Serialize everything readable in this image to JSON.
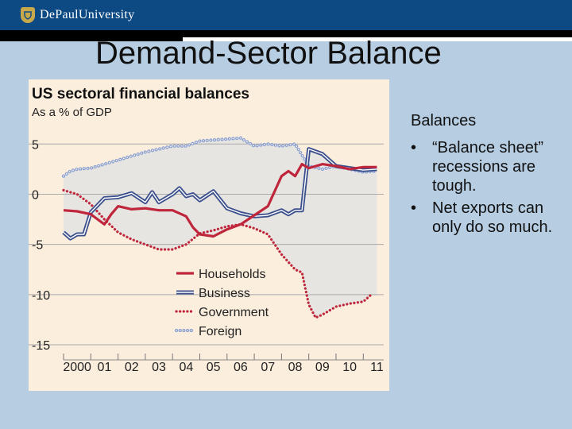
{
  "header": {
    "logo_text": "DePaulUniversity",
    "logo_icon": "university-crest-icon"
  },
  "slide": {
    "title": "Demand-Sector Balance",
    "side_heading": "Balances",
    "bullets": [
      "“Balance sheet” recessions are tough.",
      "Net exports can only do so much."
    ]
  },
  "chart_data": {
    "type": "line",
    "title": "US sectoral financial balances",
    "subtitle": "As a % of GDP",
    "xlabel": "",
    "ylabel": "",
    "x_tick_labels": [
      "2000",
      "01",
      "02",
      "03",
      "04",
      "05",
      "06",
      "07",
      "08",
      "09",
      "10",
      "11"
    ],
    "y_tick_labels": [
      "5",
      "0",
      "-5",
      "-10",
      "-15"
    ],
    "yticks": [
      5,
      0,
      -5,
      -10,
      -15
    ],
    "xlim": [
      2000,
      2011.75
    ],
    "ylim": [
      -16.5,
      7
    ],
    "grid": true,
    "legend_position": "bottom-center",
    "shaded_area": "between highest and lowest series",
    "series": [
      {
        "name": "Households",
        "color": "#c0263b",
        "style": "solid",
        "x": [
          2000,
          2000.5,
          2001,
          2001.25,
          2001.5,
          2001.75,
          2002,
          2002.5,
          2003,
          2003.5,
          2004,
          2004.5,
          2004.75,
          2005,
          2005.5,
          2006,
          2006.5,
          2007,
          2007.5,
          2008,
          2008.25,
          2008.5,
          2008.75,
          2009,
          2009.25,
          2009.5,
          2010,
          2010.5,
          2011,
          2011.5
        ],
        "y": [
          -1.6,
          -1.7,
          -2.0,
          -2.5,
          -3.0,
          -2.0,
          -1.2,
          -1.5,
          -1.4,
          -1.6,
          -1.6,
          -2.2,
          -3.3,
          -4.0,
          -4.2,
          -3.5,
          -3.0,
          -2.1,
          -1.2,
          1.8,
          2.3,
          1.8,
          3.0,
          2.6,
          2.8,
          3.0,
          2.8,
          2.5,
          2.7,
          2.7
        ]
      },
      {
        "name": "Business",
        "color": "#3a4f8c",
        "style": "double",
        "x": [
          2000,
          2000.25,
          2000.5,
          2000.75,
          2001,
          2001.5,
          2002,
          2002.5,
          2003,
          2003.25,
          2003.5,
          2004,
          2004.25,
          2004.5,
          2004.75,
          2005,
          2005.5,
          2006,
          2006.5,
          2007,
          2007.5,
          2008,
          2008.25,
          2008.5,
          2008.75,
          2009,
          2009.5,
          2010,
          2010.5,
          2011,
          2011.5
        ],
        "y": [
          -3.8,
          -4.4,
          -4.0,
          -4.0,
          -1.8,
          -0.4,
          -0.3,
          0.1,
          -0.8,
          0.2,
          -0.8,
          0.0,
          0.6,
          -0.2,
          0.0,
          -0.6,
          0.3,
          -1.4,
          -1.9,
          -2.2,
          -2.1,
          -1.6,
          -2.0,
          -1.6,
          -1.6,
          4.5,
          4.0,
          2.8,
          2.6,
          2.4,
          2.5
        ]
      },
      {
        "name": "Government",
        "color": "#c0263b",
        "style": "dotted",
        "x": [
          2000,
          2000.5,
          2001,
          2001.5,
          2002,
          2002.5,
          2003,
          2003.5,
          2004,
          2004.5,
          2005,
          2005.5,
          2006,
          2006.5,
          2007,
          2007.5,
          2008,
          2008.5,
          2008.75,
          2009,
          2009.25,
          2009.5,
          2010,
          2010.5,
          2011,
          2011.25
        ],
        "y": [
          0.4,
          0.0,
          -1.0,
          -2.5,
          -3.8,
          -4.5,
          -5.0,
          -5.5,
          -5.5,
          -5.0,
          -3.9,
          -3.6,
          -3.2,
          -3.0,
          -3.4,
          -4.0,
          -6.0,
          -7.5,
          -7.8,
          -11.0,
          -12.3,
          -12.0,
          -11.2,
          -10.9,
          -10.7,
          -10.1
        ]
      },
      {
        "name": "Foreign",
        "color": "#8a9fd0",
        "style": "beaded",
        "x": [
          2000,
          2000.25,
          2000.5,
          2001,
          2001.5,
          2002,
          2002.5,
          2003,
          2003.5,
          2004,
          2004.5,
          2005,
          2005.5,
          2006,
          2006.5,
          2007,
          2007.5,
          2008,
          2008.5,
          2009,
          2009.5,
          2010,
          2010.5,
          2011,
          2011.5
        ],
        "y": [
          1.8,
          2.3,
          2.5,
          2.6,
          3.0,
          3.4,
          3.8,
          4.2,
          4.5,
          4.8,
          4.8,
          5.3,
          5.4,
          5.5,
          5.6,
          4.8,
          5.0,
          4.8,
          5.0,
          2.8,
          2.5,
          2.8,
          2.5,
          2.2,
          2.3
        ]
      }
    ]
  }
}
